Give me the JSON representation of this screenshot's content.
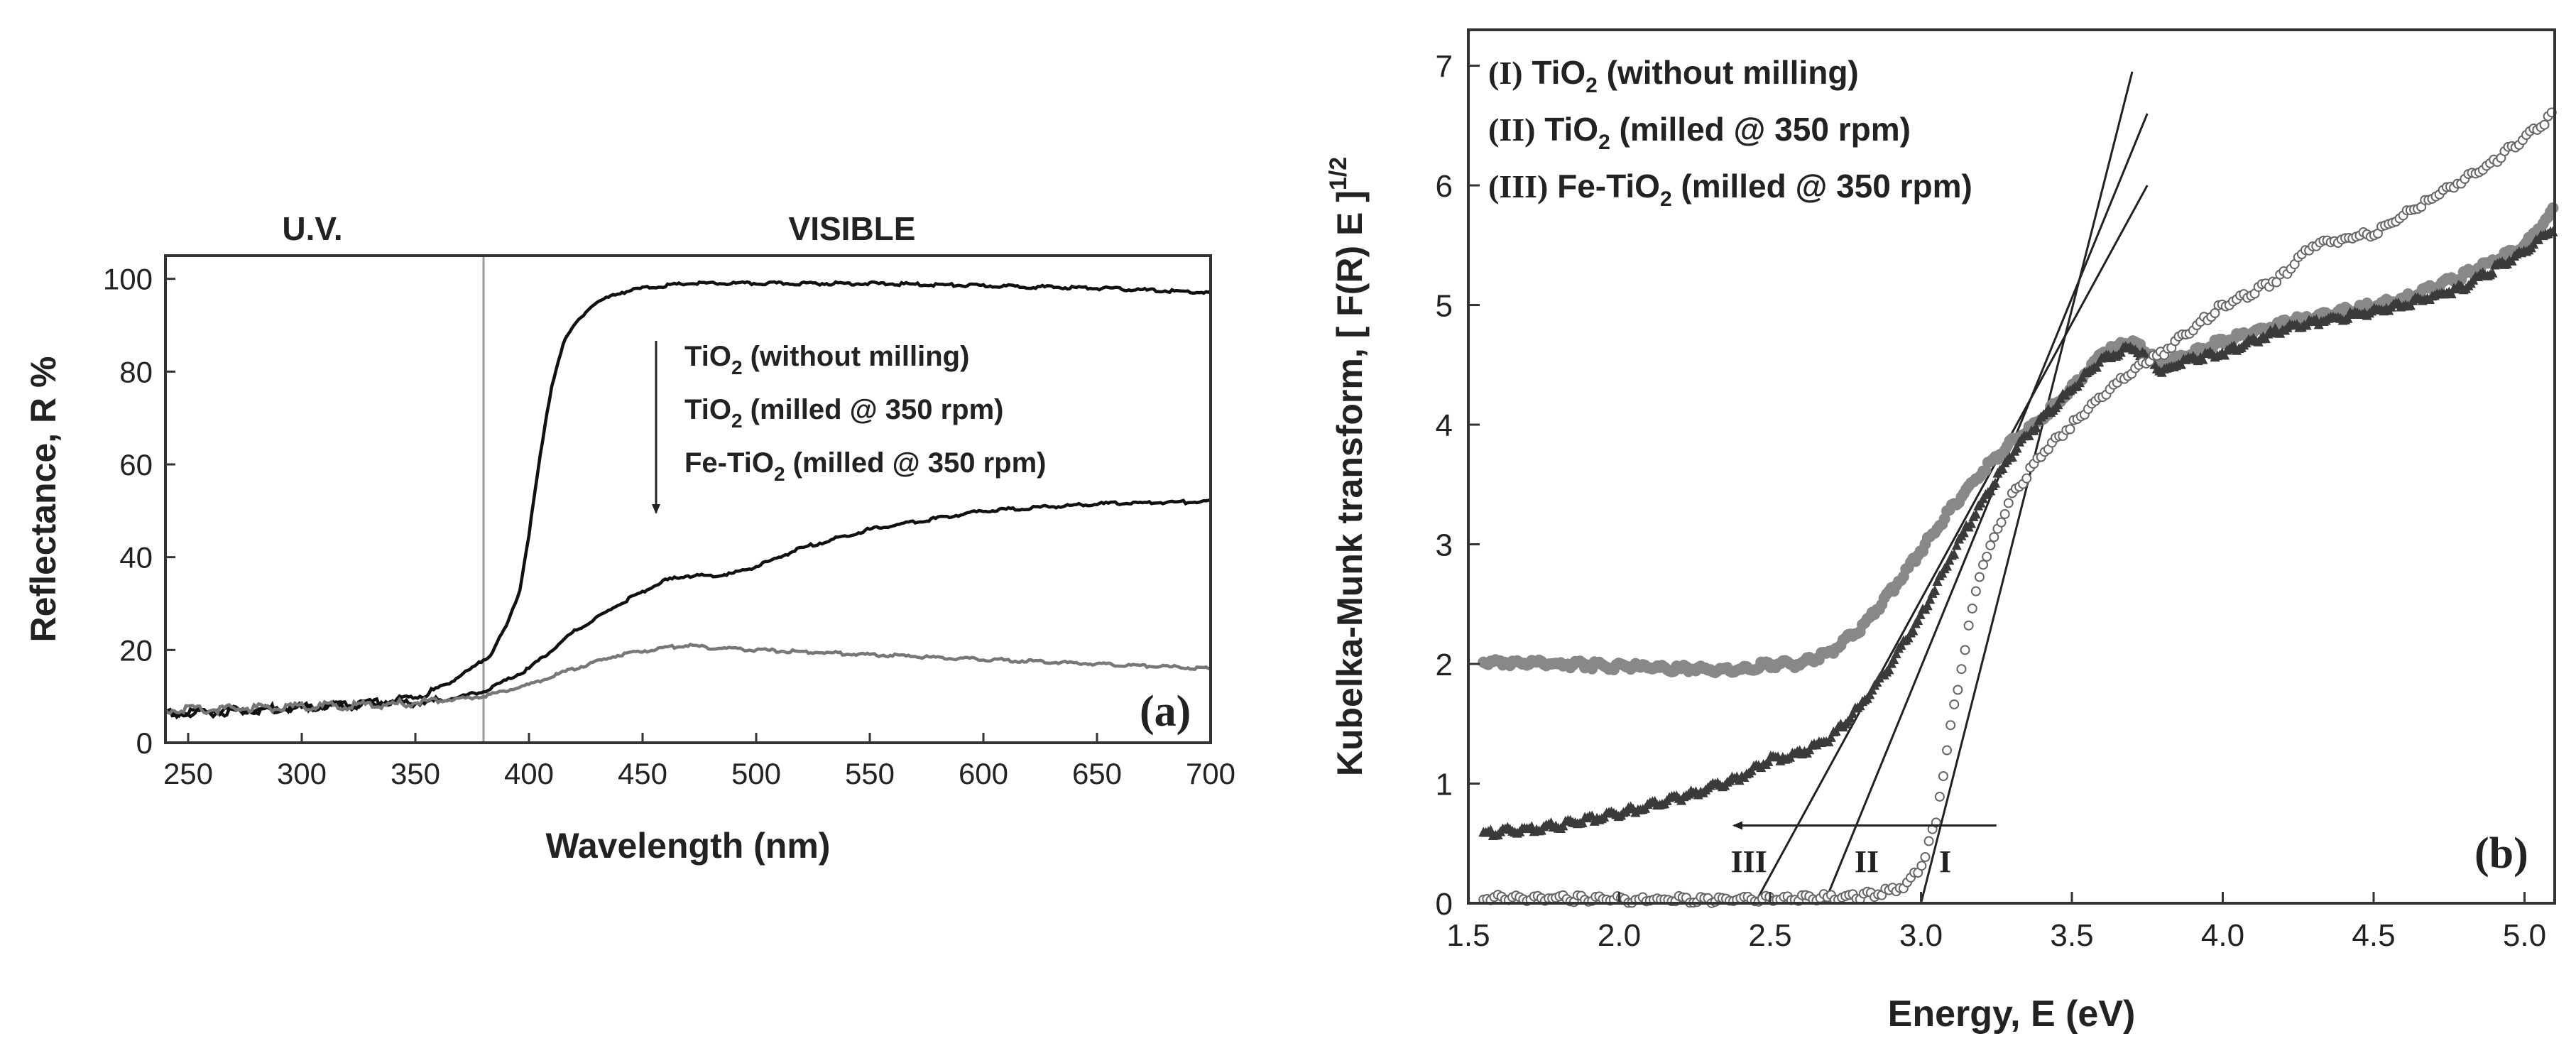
{
  "chart_data": [
    {
      "type": "line",
      "panel_label": "(a)",
      "xlabel": "Wavelength (nm)",
      "ylabel": "Reflectance, R %",
      "xlim": [
        240,
        700
      ],
      "ylim": [
        0,
        105
      ],
      "xticks": [
        250,
        300,
        350,
        400,
        450,
        500,
        550,
        600,
        650,
        700
      ],
      "yticks": [
        0,
        20,
        40,
        60,
        80,
        100
      ],
      "region_labels": {
        "uv": "U.V.",
        "visible": "VISIBLE"
      },
      "region_boundary_x": 380,
      "legend": {
        "items": [
          {
            "pre": "TiO",
            "sub": "2",
            "post": " (without milling)"
          },
          {
            "pre": "TiO",
            "sub": "2",
            "post": " (milled @ 350 rpm)"
          },
          {
            "pre": "Fe-TiO",
            "sub": "2",
            "post": " (milled @ 350 rpm)"
          }
        ]
      },
      "series": [
        {
          "name": "TiO2 (without milling)",
          "color": "#111111",
          "x": [
            240,
            260,
            280,
            300,
            320,
            340,
            355,
            365,
            375,
            383,
            390,
            396,
            400,
            405,
            410,
            415,
            420,
            425,
            430,
            440,
            450,
            470,
            500,
            550,
            600,
            650,
            700
          ],
          "y": [
            6,
            6.5,
            7,
            7.5,
            8,
            9,
            10.5,
            13,
            16,
            19,
            25,
            33,
            45,
            62,
            77,
            86,
            90,
            93,
            95,
            97,
            98,
            99,
            99,
            99,
            98.5,
            98,
            97
          ]
        },
        {
          "name": "TiO2 (milled @ 350 rpm)",
          "color": "#111111",
          "x": [
            240,
            260,
            280,
            300,
            320,
            340,
            360,
            380,
            400,
            420,
            440,
            460,
            470,
            480,
            490,
            500,
            520,
            550,
            600,
            650,
            700
          ],
          "y": [
            6.5,
            7,
            7.2,
            7.6,
            8,
            8.5,
            9,
            11,
            16,
            24,
            30,
            35,
            36,
            36,
            36.5,
            38,
            42,
            46,
            50,
            51.5,
            52
          ]
        },
        {
          "name": "Fe-TiO2 (milled @ 350 rpm)",
          "color": "#777777",
          "x": [
            240,
            260,
            280,
            300,
            320,
            340,
            360,
            380,
            400,
            420,
            440,
            460,
            470,
            480,
            500,
            550,
            600,
            650,
            700
          ],
          "y": [
            7,
            7.2,
            7.5,
            7.8,
            8,
            8.3,
            9,
            10,
            12.5,
            16,
            19,
            20.5,
            21,
            20.5,
            20,
            19,
            18,
            17,
            16
          ]
        }
      ]
    },
    {
      "type": "scatter",
      "panel_label": "(b)",
      "xlabel": "Energy, E (eV)",
      "ylabel": "Kubelka-Munk transform, [ F(R) E ]",
      "ylabel_sup": "1/2",
      "xlim": [
        1.5,
        5.1
      ],
      "ylim": [
        0,
        7.3
      ],
      "xticks": [
        1.5,
        2.0,
        2.5,
        3.0,
        3.5,
        4.0,
        4.5,
        5.0
      ],
      "xtick_labels": [
        "1.5",
        "2.0",
        "2.5",
        "3.0",
        "3.5",
        "4.0",
        "4.5",
        "5.0"
      ],
      "yticks": [
        0,
        1,
        2,
        3,
        4,
        5,
        6,
        7
      ],
      "legend": {
        "items": [
          {
            "num": "(I)",
            "pre": " TiO",
            "sub": "2",
            "post": " (without milling)"
          },
          {
            "num": "(II)",
            "pre": " TiO",
            "sub": "2",
            "post": " (milled @ 350 rpm)"
          },
          {
            "num": "(III)",
            "pre": " Fe-TiO",
            "sub": "2",
            "post": " (milled @ 350 rpm)"
          }
        ]
      },
      "series": [
        {
          "name": "(I) TiO2 (without milling)",
          "marker": "open-circle",
          "color": "#666666",
          "x": [
            1.55,
            1.8,
            2.0,
            2.2,
            2.4,
            2.6,
            2.8,
            2.9,
            2.95,
            3.0,
            3.05,
            3.1,
            3.15,
            3.2,
            3.3,
            3.4,
            3.5,
            3.6,
            3.7,
            3.8,
            3.9,
            4.0,
            4.1,
            4.2,
            4.3,
            4.4,
            4.5,
            4.6,
            4.7,
            4.8,
            4.9,
            5.0,
            5.1
          ],
          "y": [
            0.05,
            0.04,
            0.03,
            0.03,
            0.03,
            0.04,
            0.06,
            0.1,
            0.15,
            0.3,
            0.7,
            1.5,
            2.2,
            2.8,
            3.4,
            3.75,
            4.0,
            4.25,
            4.45,
            4.6,
            4.8,
            5.0,
            5.1,
            5.25,
            5.5,
            5.55,
            5.6,
            5.75,
            5.9,
            6.05,
            6.2,
            6.4,
            6.6
          ]
        },
        {
          "name": "(II) TiO2 (milled @ 350 rpm)",
          "marker": "filled-triangle",
          "color": "#3a3a3a",
          "x": [
            1.55,
            1.8,
            2.0,
            2.2,
            2.4,
            2.5,
            2.6,
            2.7,
            2.8,
            2.9,
            3.0,
            3.1,
            3.2,
            3.3,
            3.4,
            3.5,
            3.6,
            3.7,
            3.8,
            3.9,
            4.0,
            4.2,
            4.4,
            4.6,
            4.8,
            5.0,
            5.1
          ],
          "y": [
            0.58,
            0.65,
            0.75,
            0.88,
            1.05,
            1.2,
            1.25,
            1.38,
            1.65,
            2.0,
            2.4,
            2.9,
            3.35,
            3.75,
            4.05,
            4.3,
            4.55,
            4.65,
            4.45,
            4.55,
            4.6,
            4.8,
            4.9,
            5.0,
            5.15,
            5.45,
            5.65
          ]
        },
        {
          "name": "(III) Fe-TiO2 (milled @ 350 rpm)",
          "marker": "filled-circle",
          "color": "#888888",
          "x": [
            1.55,
            1.8,
            2.0,
            2.2,
            2.4,
            2.5,
            2.6,
            2.7,
            2.8,
            2.9,
            3.0,
            3.1,
            3.2,
            3.3,
            3.4,
            3.5,
            3.6,
            3.7,
            3.8,
            3.9,
            4.0,
            4.2,
            4.4,
            4.6,
            4.8,
            5.0,
            5.1
          ],
          "y": [
            2.02,
            2.0,
            1.98,
            1.96,
            1.95,
            2.0,
            2.0,
            2.1,
            2.3,
            2.6,
            2.95,
            3.3,
            3.6,
            3.85,
            4.05,
            4.3,
            4.6,
            4.7,
            4.5,
            4.6,
            4.7,
            4.85,
            4.95,
            5.05,
            5.25,
            5.5,
            5.8
          ]
        }
      ],
      "fit_lines": [
        {
          "label": "I",
          "x": [
            3.0,
            3.7
          ],
          "y": [
            0.0,
            6.95
          ]
        },
        {
          "label": "II",
          "x": [
            2.68,
            3.75
          ],
          "y": [
            0.0,
            6.6
          ]
        },
        {
          "label": "III",
          "x": [
            2.45,
            3.75
          ],
          "y": [
            0.0,
            6.0
          ]
        }
      ],
      "arrow": {
        "from_x": 3.25,
        "to_x": 2.38,
        "y": 0.65
      }
    }
  ]
}
